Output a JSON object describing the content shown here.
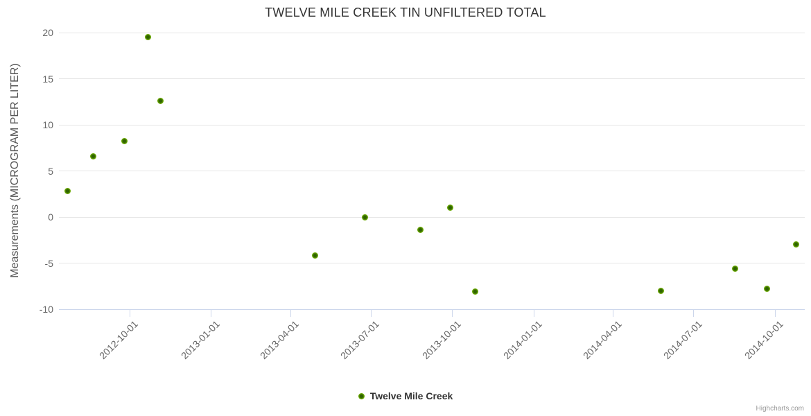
{
  "title": "TWELVE MILE CREEK TIN UNFILTERED TOTAL",
  "credits_label": "Highcharts.com",
  "colors": {
    "series_outer": "#69a800",
    "series_edge": "#7db518",
    "series_inner": "#2f6300",
    "gridline": "#e6e6e6",
    "axis_line": "#ccd6eb",
    "title_text": "#333333",
    "axis_title_text": "#555555",
    "tick_label_text": "#666666",
    "credits_text": "#999999"
  },
  "chart_data": {
    "type": "scatter",
    "title": "TWELVE MILE CREEK TIN UNFILTERED TOTAL",
    "xlabel": "",
    "ylabel": "Measurements (MICROGRAM PER LITER)",
    "ylim": [
      -10,
      20
    ],
    "y_ticks": [
      20,
      15,
      10,
      5,
      0,
      -5,
      -10
    ],
    "x_ticks": [
      "2012-10-01",
      "2013-01-01",
      "2013-04-01",
      "2013-07-01",
      "2013-10-01",
      "2014-01-01",
      "2014-04-01",
      "2014-07-01",
      "2014-10-01"
    ],
    "x_range": [
      "2012-07-13",
      "2014-11-04"
    ],
    "grid": "horizontal-only",
    "legend_position": "bottom-center",
    "series": [
      {
        "name": "Twelve Mile Creek",
        "color": "#69a800",
        "points": [
          {
            "x": "2012-07-23",
            "y": 2.8
          },
          {
            "x": "2012-08-21",
            "y": 6.6
          },
          {
            "x": "2012-09-25",
            "y": 8.2
          },
          {
            "x": "2012-10-22",
            "y": 19.5
          },
          {
            "x": "2012-11-05",
            "y": 12.6
          },
          {
            "x": "2013-04-29",
            "y": -4.2
          },
          {
            "x": "2013-06-24",
            "y": 0.0
          },
          {
            "x": "2013-08-26",
            "y": -1.4
          },
          {
            "x": "2013-09-29",
            "y": 1.0
          },
          {
            "x": "2013-10-27",
            "y": -8.1
          },
          {
            "x": "2014-05-25",
            "y": -8.0
          },
          {
            "x": "2014-08-17",
            "y": -5.6
          },
          {
            "x": "2014-09-22",
            "y": -7.8
          },
          {
            "x": "2014-10-25",
            "y": -3.0
          }
        ]
      }
    ]
  }
}
